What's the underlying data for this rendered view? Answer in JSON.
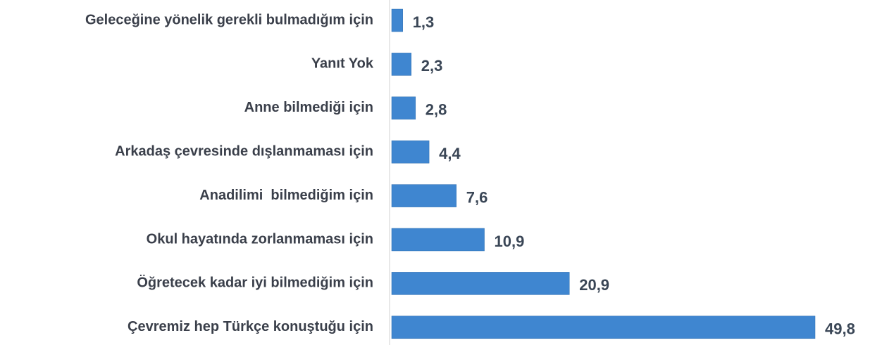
{
  "chart_data": {
    "type": "bar",
    "orientation": "horizontal",
    "categories": [
      "Geleceğine yönelik gerekli bulmadığım için",
      "Yanıt Yok",
      "Anne bilmediği için",
      "Arkadaş çevresinde dışlanmaması için",
      "Anadilimi  bilmediğim için",
      "Okul hayatında zorlanmaması için",
      "Öğretecek kadar iyi bilmediğim için",
      "Çevremiz hep Türkçe konuştuğu için"
    ],
    "values": [
      1.3,
      2.3,
      2.8,
      4.4,
      7.6,
      10.9,
      20.9,
      49.8
    ],
    "value_labels": [
      "1,3",
      "2,3",
      "2,8",
      "4,4",
      "7,6",
      "10,9",
      "20,9",
      "49,8"
    ],
    "color": "#3f86d0"
  }
}
